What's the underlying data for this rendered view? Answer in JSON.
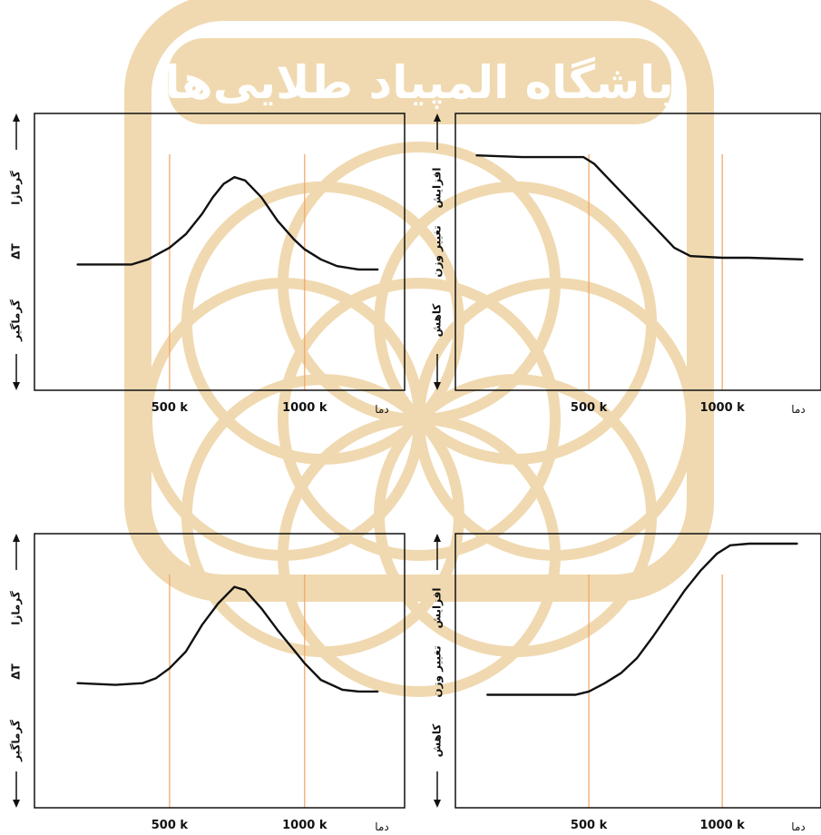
{
  "watermark": {
    "text": "باشگاه المپیاد طلایی‌ها",
    "color": "#f0d9b0"
  },
  "colors": {
    "axis": "#111111",
    "curve": "#111111",
    "refline": "#f2a35e"
  },
  "chart_data": [
    {
      "id": "dta-top",
      "type": "line",
      "xlabel": "دما",
      "ylabel": {
        "top": "گرمازا",
        "middle": "ΔT",
        "bottom": "گرماگیر"
      },
      "xticks": [
        "500 k",
        "1000 k"
      ],
      "reference_lines": [
        500,
        1000
      ],
      "x": [
        160,
        300,
        360,
        420,
        500,
        560,
        620,
        660,
        700,
        740,
        780,
        840,
        900,
        960,
        1000,
        1060,
        1120,
        1200,
        1270
      ],
      "series": [
        {
          "values": [
            0.1,
            0.1,
            0.1,
            0.13,
            0.2,
            0.28,
            0.4,
            0.5,
            0.58,
            0.62,
            0.6,
            0.5,
            0.36,
            0.25,
            0.19,
            0.13,
            0.09,
            0.07,
            0.07
          ]
        }
      ],
      "xlim": [
        0,
        1370
      ],
      "ylim": [
        -0.65,
        1.0
      ]
    },
    {
      "id": "tga-top",
      "type": "line",
      "xlabel": "دما",
      "ylabel": {
        "top": "افزایش",
        "middle": "تغییر وزن",
        "bottom": "کاهش"
      },
      "xticks": [
        "500 k",
        "1000 k"
      ],
      "reference_lines": [
        500,
        1000
      ],
      "x": [
        80,
        250,
        400,
        480,
        520,
        580,
        640,
        700,
        760,
        820,
        880,
        1000,
        1100,
        1300
      ],
      "series": [
        {
          "values": [
            0.75,
            0.74,
            0.74,
            0.74,
            0.7,
            0.6,
            0.5,
            0.4,
            0.3,
            0.2,
            0.15,
            0.14,
            0.14,
            0.13
          ]
        }
      ],
      "xlim": [
        0,
        1370
      ],
      "ylim": [
        -0.65,
        1.0
      ]
    },
    {
      "id": "dta-bottom",
      "type": "line",
      "xlabel": "دما",
      "ylabel": {
        "top": "گرمازا",
        "middle": "ΔT",
        "bottom": "گرماگیر"
      },
      "xticks": [
        "500 k",
        "1000 k"
      ],
      "reference_lines": [
        500,
        1000
      ],
      "x": [
        160,
        300,
        400,
        450,
        500,
        560,
        620,
        680,
        740,
        780,
        840,
        900,
        960,
        1000,
        1060,
        1140,
        1200,
        1270
      ],
      "series": [
        {
          "values": [
            0.1,
            0.09,
            0.1,
            0.13,
            0.19,
            0.29,
            0.45,
            0.58,
            0.68,
            0.66,
            0.55,
            0.42,
            0.3,
            0.22,
            0.12,
            0.06,
            0.05,
            0.05
          ]
        }
      ],
      "xlim": [
        0,
        1370
      ],
      "ylim": [
        -0.65,
        1.0
      ]
    },
    {
      "id": "tga-bottom",
      "type": "line",
      "xlabel": "دما",
      "ylabel": {
        "top": "افزایش",
        "middle": "تغییر وزن",
        "bottom": "کاهش"
      },
      "xticks": [
        "500 k",
        "1000 k"
      ],
      "reference_lines": [
        500,
        1000
      ],
      "x": [
        120,
        250,
        450,
        500,
        560,
        620,
        680,
        740,
        800,
        860,
        920,
        980,
        1030,
        1100,
        1200,
        1280
      ],
      "series": [
        {
          "values": [
            0.03,
            0.03,
            0.03,
            0.05,
            0.1,
            0.16,
            0.25,
            0.38,
            0.52,
            0.66,
            0.78,
            0.88,
            0.93,
            0.94,
            0.94,
            0.94
          ]
        }
      ],
      "xlim": [
        0,
        1370
      ],
      "ylim": [
        -0.65,
        1.0
      ]
    }
  ]
}
